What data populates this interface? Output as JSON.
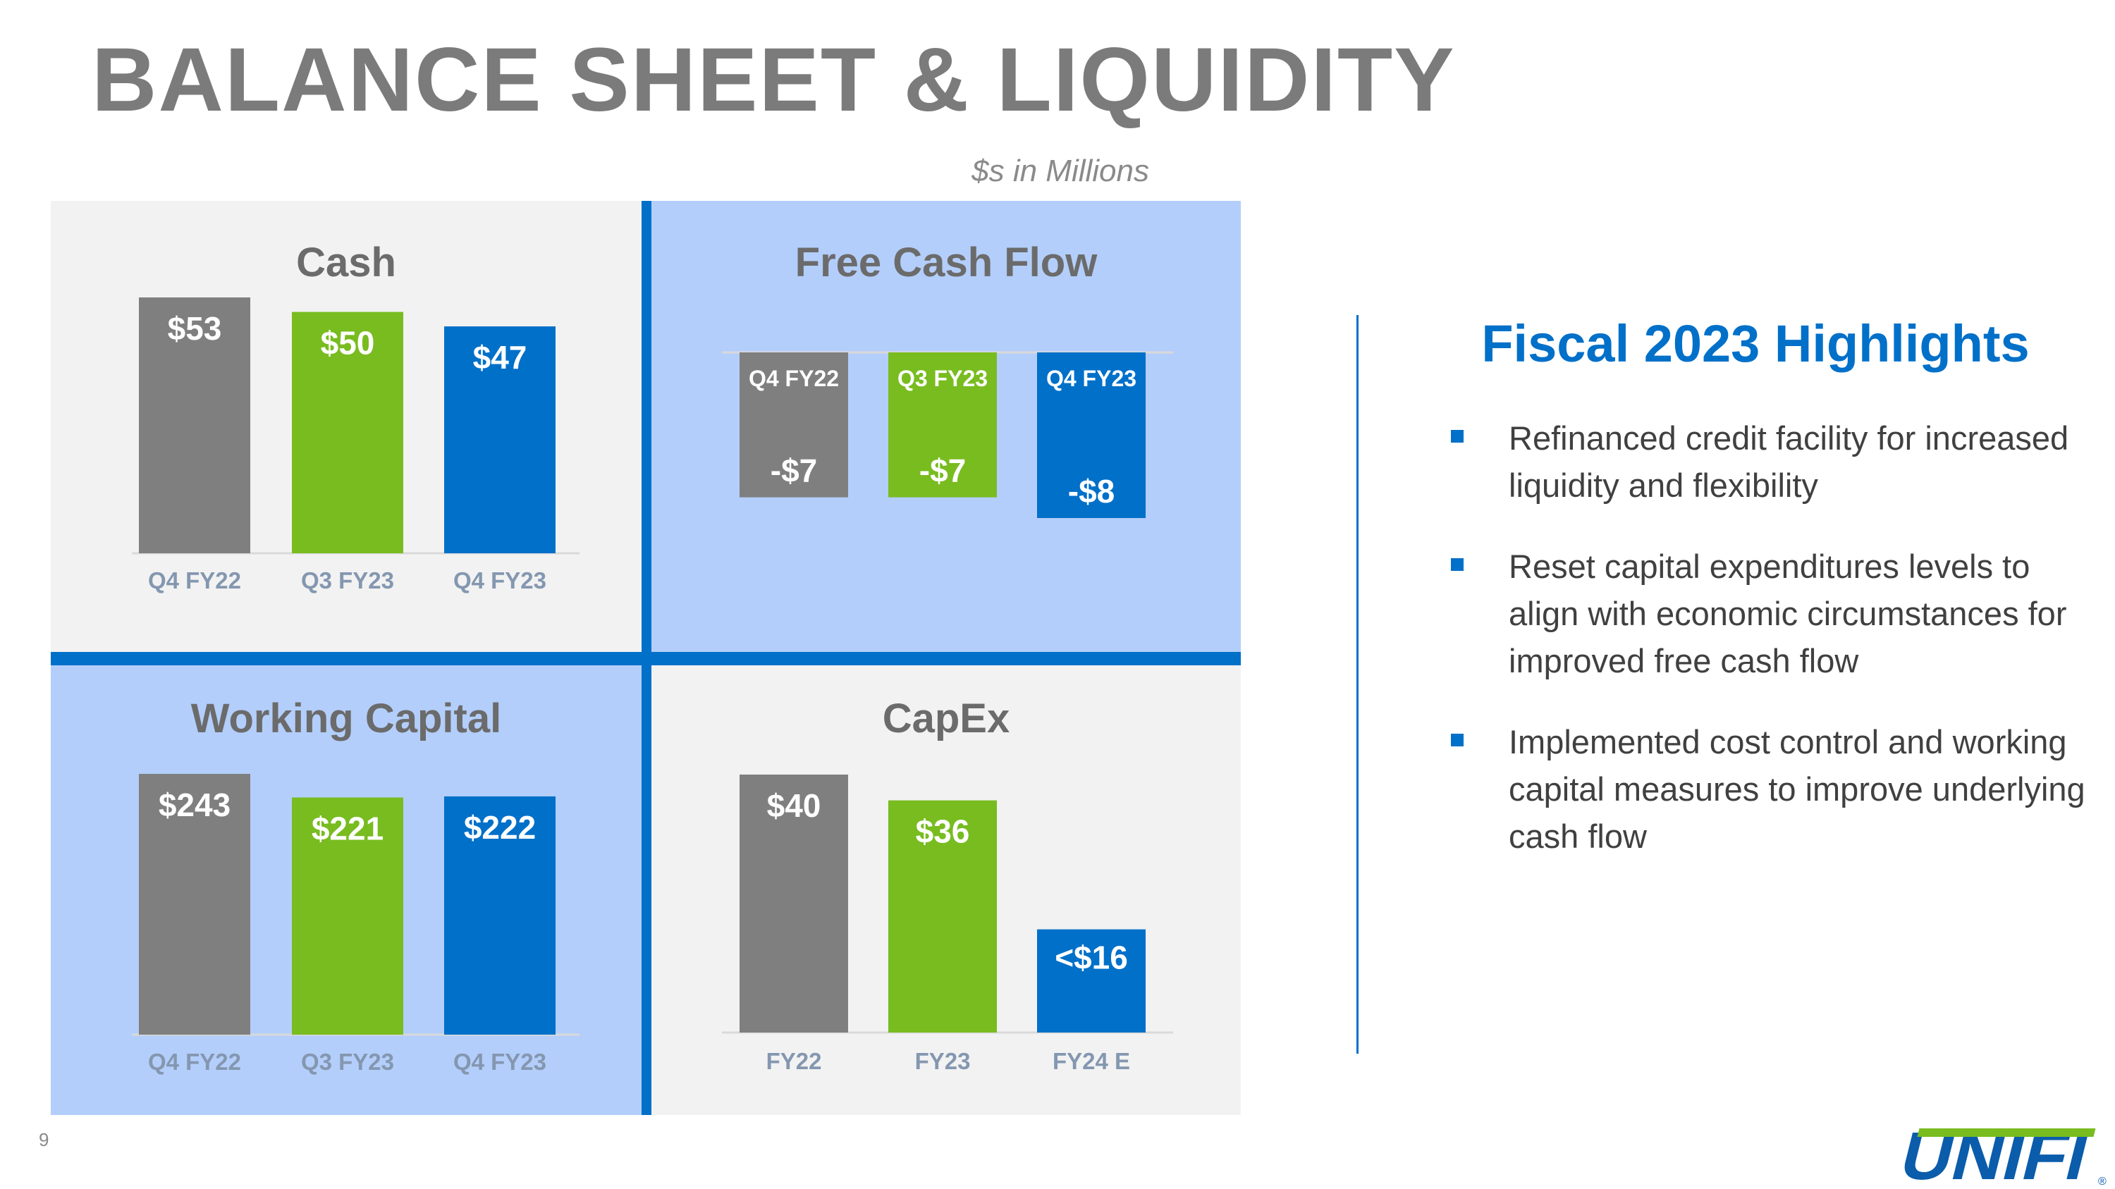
{
  "page": {
    "title": "BALANCE SHEET & LIQUIDITY",
    "units": "$s in Millions",
    "page_number": "9"
  },
  "colors": {
    "gray_bar": "#7f7f7f",
    "green_bar": "#78bc20",
    "blue_bar": "#0070c9",
    "panel_gray": "#f2f2f2",
    "panel_blue": "#b3cefa",
    "title_gray": "#7b7b7b",
    "accent_blue": "#0070c9",
    "logo_green": "#78bc20"
  },
  "highlights": {
    "title": "Fiscal 2023 Highlights",
    "marker_icon": "square-bullet-icon",
    "items": [
      "Refinanced credit facility for increased liquidity and flexibility",
      "Reset capital expenditures levels to align with economic circumstances for improved free cash flow",
      "Implemented cost control and working capital measures to improve underlying cash flow"
    ]
  },
  "logo": {
    "text": "UNIFI",
    "mark": "®"
  },
  "chart_data": [
    {
      "type": "bar",
      "title": "Cash",
      "categories": [
        "Q4 FY22",
        "Q3 FY23",
        "Q4 FY23"
      ],
      "values": [
        53,
        50,
        47
      ],
      "labels": [
        "$53",
        "$50",
        "$47"
      ],
      "ylim": [
        0,
        53
      ]
    },
    {
      "type": "bar",
      "title": "Free Cash Flow",
      "categories": [
        "Q4 FY22",
        "Q3 FY23",
        "Q4 FY23"
      ],
      "values": [
        -7,
        -7,
        -8
      ],
      "labels": [
        "-$7",
        "-$7",
        "-$8"
      ],
      "ylim": [
        -8,
        0
      ]
    },
    {
      "type": "bar",
      "title": "Working Capital",
      "categories": [
        "Q4 FY22",
        "Q3 FY23",
        "Q4 FY23"
      ],
      "values": [
        243,
        221,
        222
      ],
      "labels": [
        "$243",
        "$221",
        "$222"
      ],
      "ylim": [
        0,
        243
      ]
    },
    {
      "type": "bar",
      "title": "CapEx",
      "categories": [
        "FY22",
        "FY23",
        "FY24 E"
      ],
      "values": [
        40,
        36,
        16
      ],
      "labels": [
        "$40",
        "$36",
        "<$16"
      ],
      "ylim": [
        0,
        40
      ]
    }
  ]
}
